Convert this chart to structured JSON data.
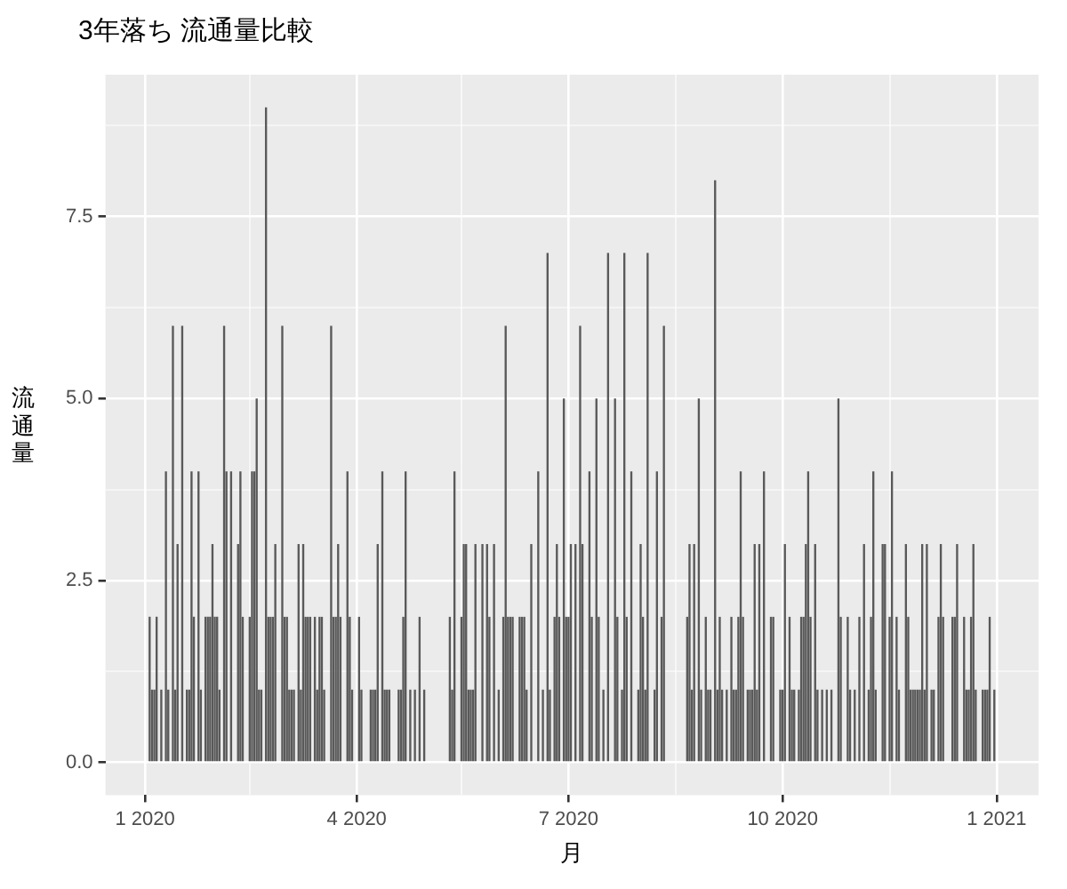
{
  "chart_data": {
    "type": "bar",
    "title": "3年落ち 流通量比較",
    "xlabel": "月",
    "ylabel": "流通量",
    "x": [
      "2020-01-03",
      "2020-01-04",
      "2020-01-05",
      "2020-01-06",
      "2020-01-08",
      "2020-01-10",
      "2020-01-11",
      "2020-01-13",
      "2020-01-14",
      "2020-01-15",
      "2020-01-17",
      "2020-01-19",
      "2020-01-20",
      "2020-01-21",
      "2020-01-22",
      "2020-01-24",
      "2020-01-25",
      "2020-01-27",
      "2020-01-28",
      "2020-01-29",
      "2020-01-30",
      "2020-01-31",
      "2020-02-01",
      "2020-02-02",
      "2020-02-04",
      "2020-02-05",
      "2020-02-07",
      "2020-02-10",
      "2020-02-11",
      "2020-02-12",
      "2020-02-15",
      "2020-02-16",
      "2020-02-17",
      "2020-02-18",
      "2020-02-19",
      "2020-02-20",
      "2020-02-22",
      "2020-02-23",
      "2020-02-24",
      "2020-02-25",
      "2020-02-26",
      "2020-02-29",
      "2020-03-01",
      "2020-03-02",
      "2020-03-03",
      "2020-03-04",
      "2020-03-05",
      "2020-03-07",
      "2020-03-08",
      "2020-03-09",
      "2020-03-10",
      "2020-03-11",
      "2020-03-12",
      "2020-03-14",
      "2020-03-15",
      "2020-03-16",
      "2020-03-17",
      "2020-03-18",
      "2020-03-21",
      "2020-03-22",
      "2020-03-23",
      "2020-03-24",
      "2020-03-25",
      "2020-03-28",
      "2020-03-29",
      "2020-03-30",
      "2020-04-02",
      "2020-04-03",
      "2020-04-07",
      "2020-04-08",
      "2020-04-09",
      "2020-04-10",
      "2020-04-12",
      "2020-04-13",
      "2020-04-14",
      "2020-04-15",
      "2020-04-19",
      "2020-04-20",
      "2020-04-21",
      "2020-04-22",
      "2020-04-24",
      "2020-04-26",
      "2020-04-28",
      "2020-04-30",
      "2020-05-11",
      "2020-05-12",
      "2020-05-13",
      "2020-05-16",
      "2020-05-17",
      "2020-05-18",
      "2020-05-19",
      "2020-05-20",
      "2020-05-21",
      "2020-05-22",
      "2020-05-25",
      "2020-05-27",
      "2020-05-28",
      "2020-05-30",
      "2020-06-01",
      "2020-06-03",
      "2020-06-04",
      "2020-06-05",
      "2020-06-06",
      "2020-06-07",
      "2020-06-10",
      "2020-06-11",
      "2020-06-12",
      "2020-06-13",
      "2020-06-15",
      "2020-06-18",
      "2020-06-20",
      "2020-06-22",
      "2020-06-23",
      "2020-06-25",
      "2020-06-26",
      "2020-06-27",
      "2020-06-29",
      "2020-06-30",
      "2020-07-01",
      "2020-07-02",
      "2020-07-04",
      "2020-07-06",
      "2020-07-07",
      "2020-07-10",
      "2020-07-11",
      "2020-07-13",
      "2020-07-14",
      "2020-07-16",
      "2020-07-18",
      "2020-07-21",
      "2020-07-22",
      "2020-07-24",
      "2020-07-25",
      "2020-07-26",
      "2020-07-28",
      "2020-07-31",
      "2020-08-01",
      "2020-08-02",
      "2020-08-03",
      "2020-08-04",
      "2020-08-07",
      "2020-08-08",
      "2020-08-10",
      "2020-08-11",
      "2020-08-21",
      "2020-08-22",
      "2020-08-23",
      "2020-08-24",
      "2020-08-26",
      "2020-08-27",
      "2020-08-29",
      "2020-08-30",
      "2020-08-31",
      "2020-09-02",
      "2020-09-03",
      "2020-09-04",
      "2020-09-05",
      "2020-09-07",
      "2020-09-09",
      "2020-09-10",
      "2020-09-11",
      "2020-09-12",
      "2020-09-13",
      "2020-09-14",
      "2020-09-16",
      "2020-09-17",
      "2020-09-18",
      "2020-09-19",
      "2020-09-20",
      "2020-09-21",
      "2020-09-23",
      "2020-09-26",
      "2020-09-27",
      "2020-09-30",
      "2020-10-01",
      "2020-10-02",
      "2020-10-04",
      "2020-10-05",
      "2020-10-06",
      "2020-10-08",
      "2020-10-09",
      "2020-10-10",
      "2020-10-11",
      "2020-10-12",
      "2020-10-13",
      "2020-10-15",
      "2020-10-16",
      "2020-10-18",
      "2020-10-20",
      "2020-10-22",
      "2020-10-25",
      "2020-10-26",
      "2020-10-29",
      "2020-10-30",
      "2020-11-01",
      "2020-11-03",
      "2020-11-05",
      "2020-11-07",
      "2020-11-08",
      "2020-11-09",
      "2020-11-10",
      "2020-11-13",
      "2020-11-14",
      "2020-11-16",
      "2020-11-17",
      "2020-11-19",
      "2020-11-20",
      "2020-11-23",
      "2020-11-24",
      "2020-11-25",
      "2020-11-26",
      "2020-11-27",
      "2020-11-28",
      "2020-11-29",
      "2020-11-30",
      "2020-12-01",
      "2020-12-02",
      "2020-12-04",
      "2020-12-05",
      "2020-12-07",
      "2020-12-08",
      "2020-12-09",
      "2020-12-13",
      "2020-12-14",
      "2020-12-15",
      "2020-12-18",
      "2020-12-19",
      "2020-12-20",
      "2020-12-21",
      "2020-12-22",
      "2020-12-23",
      "2020-12-26",
      "2020-12-27",
      "2020-12-28",
      "2020-12-29",
      "2020-12-31"
    ],
    "series": [
      {
        "color": "#595959",
        "values": [
          2,
          1,
          1,
          2,
          1,
          4,
          1,
          6,
          1,
          3,
          6,
          1,
          1,
          4,
          2,
          4,
          1,
          2,
          2,
          2,
          3,
          2,
          2,
          1,
          6,
          4,
          4,
          3,
          4,
          2,
          2,
          4,
          4,
          5,
          1,
          1,
          9,
          2,
          2,
          2,
          3,
          6,
          2,
          2,
          1,
          1,
          1,
          3,
          1,
          3,
          2,
          2,
          2,
          2,
          1,
          2,
          2,
          1,
          6,
          2,
          2,
          3,
          2,
          4,
          2,
          1,
          2,
          1,
          1,
          1,
          1,
          3,
          4,
          1,
          1,
          1,
          1,
          1,
          2,
          4,
          1,
          1,
          2,
          1,
          2,
          1,
          4,
          2,
          3,
          3,
          1,
          1,
          1,
          3,
          3,
          3,
          2,
          3,
          1,
          2,
          6,
          2,
          2,
          2,
          2,
          2,
          2,
          1,
          3,
          4,
          1,
          7,
          1,
          2,
          3,
          2,
          5,
          2,
          2,
          3,
          3,
          6,
          3,
          4,
          2,
          5,
          2,
          1,
          7,
          5,
          2,
          1,
          7,
          2,
          4,
          1,
          3,
          2,
          1,
          7,
          1,
          4,
          2,
          6,
          2,
          3,
          1,
          3,
          5,
          1,
          2,
          1,
          1,
          8,
          1,
          2,
          1,
          1,
          2,
          1,
          1,
          2,
          4,
          2,
          1,
          1,
          1,
          3,
          1,
          3,
          4,
          2,
          2,
          1,
          1,
          3,
          2,
          1,
          1,
          1,
          2,
          2,
          3,
          4,
          2,
          3,
          1,
          1,
          1,
          1,
          5,
          2,
          2,
          1,
          1,
          2,
          3,
          1,
          2,
          4,
          1,
          3,
          3,
          2,
          4,
          2,
          1,
          3,
          2,
          1,
          1,
          1,
          1,
          1,
          3,
          1,
          3,
          1,
          1,
          2,
          3,
          2,
          2,
          2,
          3,
          2,
          1,
          1,
          2,
          3,
          1,
          1,
          1,
          1,
          2,
          1
        ]
      }
    ],
    "xlim": [
      "2019-12-15",
      "2021-01-19"
    ],
    "xticks": [
      {
        "value": "2020-01-01",
        "label": "1 2020"
      },
      {
        "value": "2020-02-15",
        "label": null
      },
      {
        "value": "2020-04-01",
        "label": "4 2020"
      },
      {
        "value": "2020-05-16",
        "label": null
      },
      {
        "value": "2020-07-01",
        "label": "7 2020"
      },
      {
        "value": "2020-08-16",
        "label": null
      },
      {
        "value": "2020-10-01",
        "label": "10 2020"
      },
      {
        "value": "2020-11-16",
        "label": null
      },
      {
        "value": "2021-01-01",
        "label": "1 2021"
      }
    ],
    "ylim": [
      -0.45,
      9.45
    ],
    "yticks": [
      {
        "value": 0,
        "label": "0.0"
      },
      {
        "value": 1.25,
        "label": null
      },
      {
        "value": 2.5,
        "label": "2.5"
      },
      {
        "value": 3.75,
        "label": null
      },
      {
        "value": 5,
        "label": "5.0"
      },
      {
        "value": 6.25,
        "label": null
      },
      {
        "value": 7.5,
        "label": "7.5"
      },
      {
        "value": 8.75,
        "label": null
      }
    ],
    "grid": true,
    "legend": false
  }
}
